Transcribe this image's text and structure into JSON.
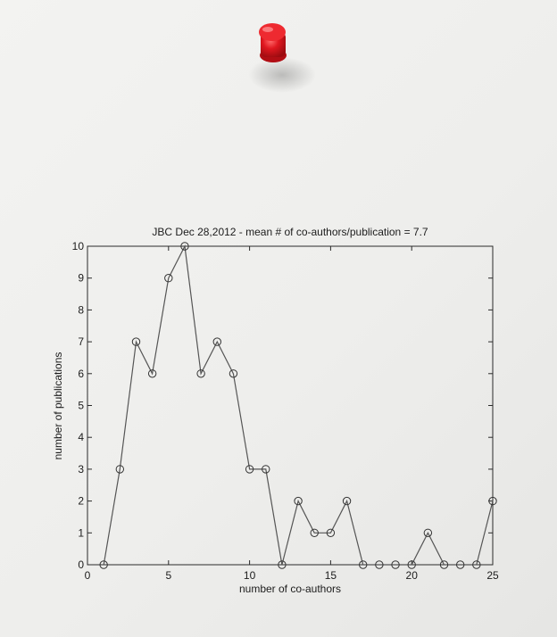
{
  "photo": {
    "background_color": "#f0f0ee",
    "pushpin_color": "#e01820"
  },
  "chart_data": {
    "type": "line",
    "title": "JBC Dec 28,2012 - mean # of co-authors/publication = 7.7",
    "xlabel": "number of co-authors",
    "ylabel": "number of publications",
    "xlim": [
      0,
      25
    ],
    "ylim": [
      0,
      10
    ],
    "xticks": [
      0,
      5,
      10,
      15,
      20,
      25
    ],
    "yticks": [
      0,
      1,
      2,
      3,
      4,
      5,
      6,
      7,
      8,
      9,
      10
    ],
    "grid": false,
    "marker": "open-circle",
    "line_color": "#555555",
    "series": [
      {
        "x": [
          1,
          2,
          3,
          4,
          5,
          6,
          7,
          8,
          9,
          10,
          11,
          12,
          13,
          14,
          15,
          16,
          17,
          18,
          19,
          20,
          21,
          22,
          23,
          24,
          25
        ],
        "y": [
          0,
          3,
          7,
          6,
          9,
          10,
          6,
          7,
          6,
          3,
          3,
          0,
          2,
          1,
          1,
          2,
          0,
          0,
          0,
          0,
          1,
          0,
          0,
          0,
          2
        ]
      }
    ]
  }
}
